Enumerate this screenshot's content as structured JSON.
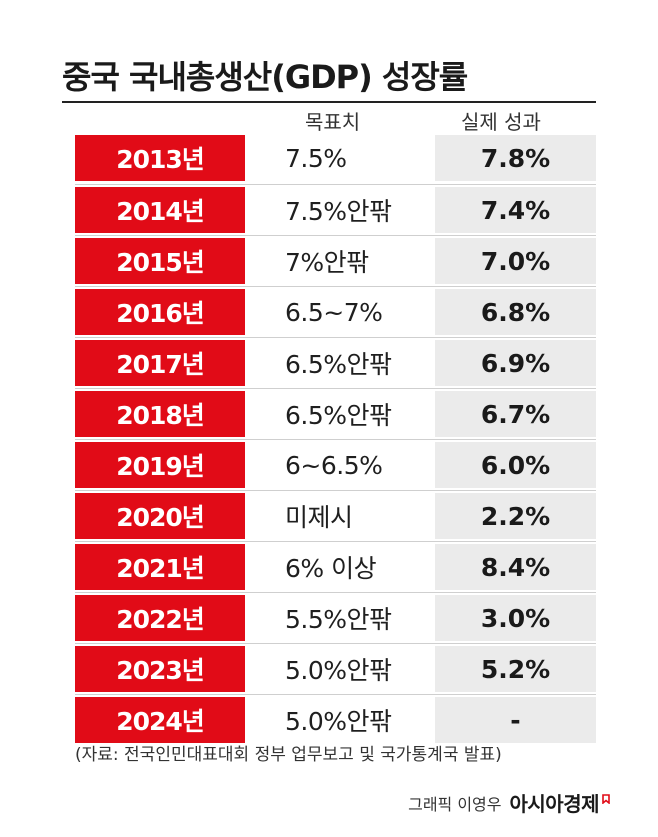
{
  "title": "중국 국내총생산(GDP) 성장률",
  "column_headers": {
    "target": "목표치",
    "actual": "실제 성과"
  },
  "chart_data": {
    "type": "table",
    "title": "중국 국내총생산(GDP) 성장률",
    "columns": [
      "",
      "목표치",
      "실제 성과"
    ],
    "rows": [
      {
        "year": "2013년",
        "target": "7.5%",
        "actual": "7.8%"
      },
      {
        "year": "2014년",
        "target": "7.5%안팎",
        "actual": "7.4%"
      },
      {
        "year": "2015년",
        "target": "7%안팎",
        "actual": "7.0%"
      },
      {
        "year": "2016년",
        "target": "6.5~7%",
        "actual": "6.8%"
      },
      {
        "year": "2017년",
        "target": "6.5%안팎",
        "actual": "6.9%"
      },
      {
        "year": "2018년",
        "target": "6.5%안팎",
        "actual": "6.7%"
      },
      {
        "year": "2019년",
        "target": "6~6.5%",
        "actual": "6.0%"
      },
      {
        "year": "2020년",
        "target": "미제시",
        "actual": "2.2%"
      },
      {
        "year": "2021년",
        "target": "6% 이상",
        "actual": "8.4%"
      },
      {
        "year": "2022년",
        "target": "5.5%안팎",
        "actual": "3.0%"
      },
      {
        "year": "2023년",
        "target": "5.0%안팎",
        "actual": "5.2%"
      },
      {
        "year": "2024년",
        "target": "5.0%안팎",
        "actual": "-"
      }
    ]
  },
  "source": "(자료: 전국인민대표대회 정부 업무보고 및 국가통계국 발표)",
  "credit": {
    "graphic": "그래픽 이영우",
    "brand": "아시아경제"
  },
  "colors": {
    "year_cell": "#e10b17",
    "actual_cell": "#ebebeb",
    "brand_mark": "#e10b17"
  }
}
